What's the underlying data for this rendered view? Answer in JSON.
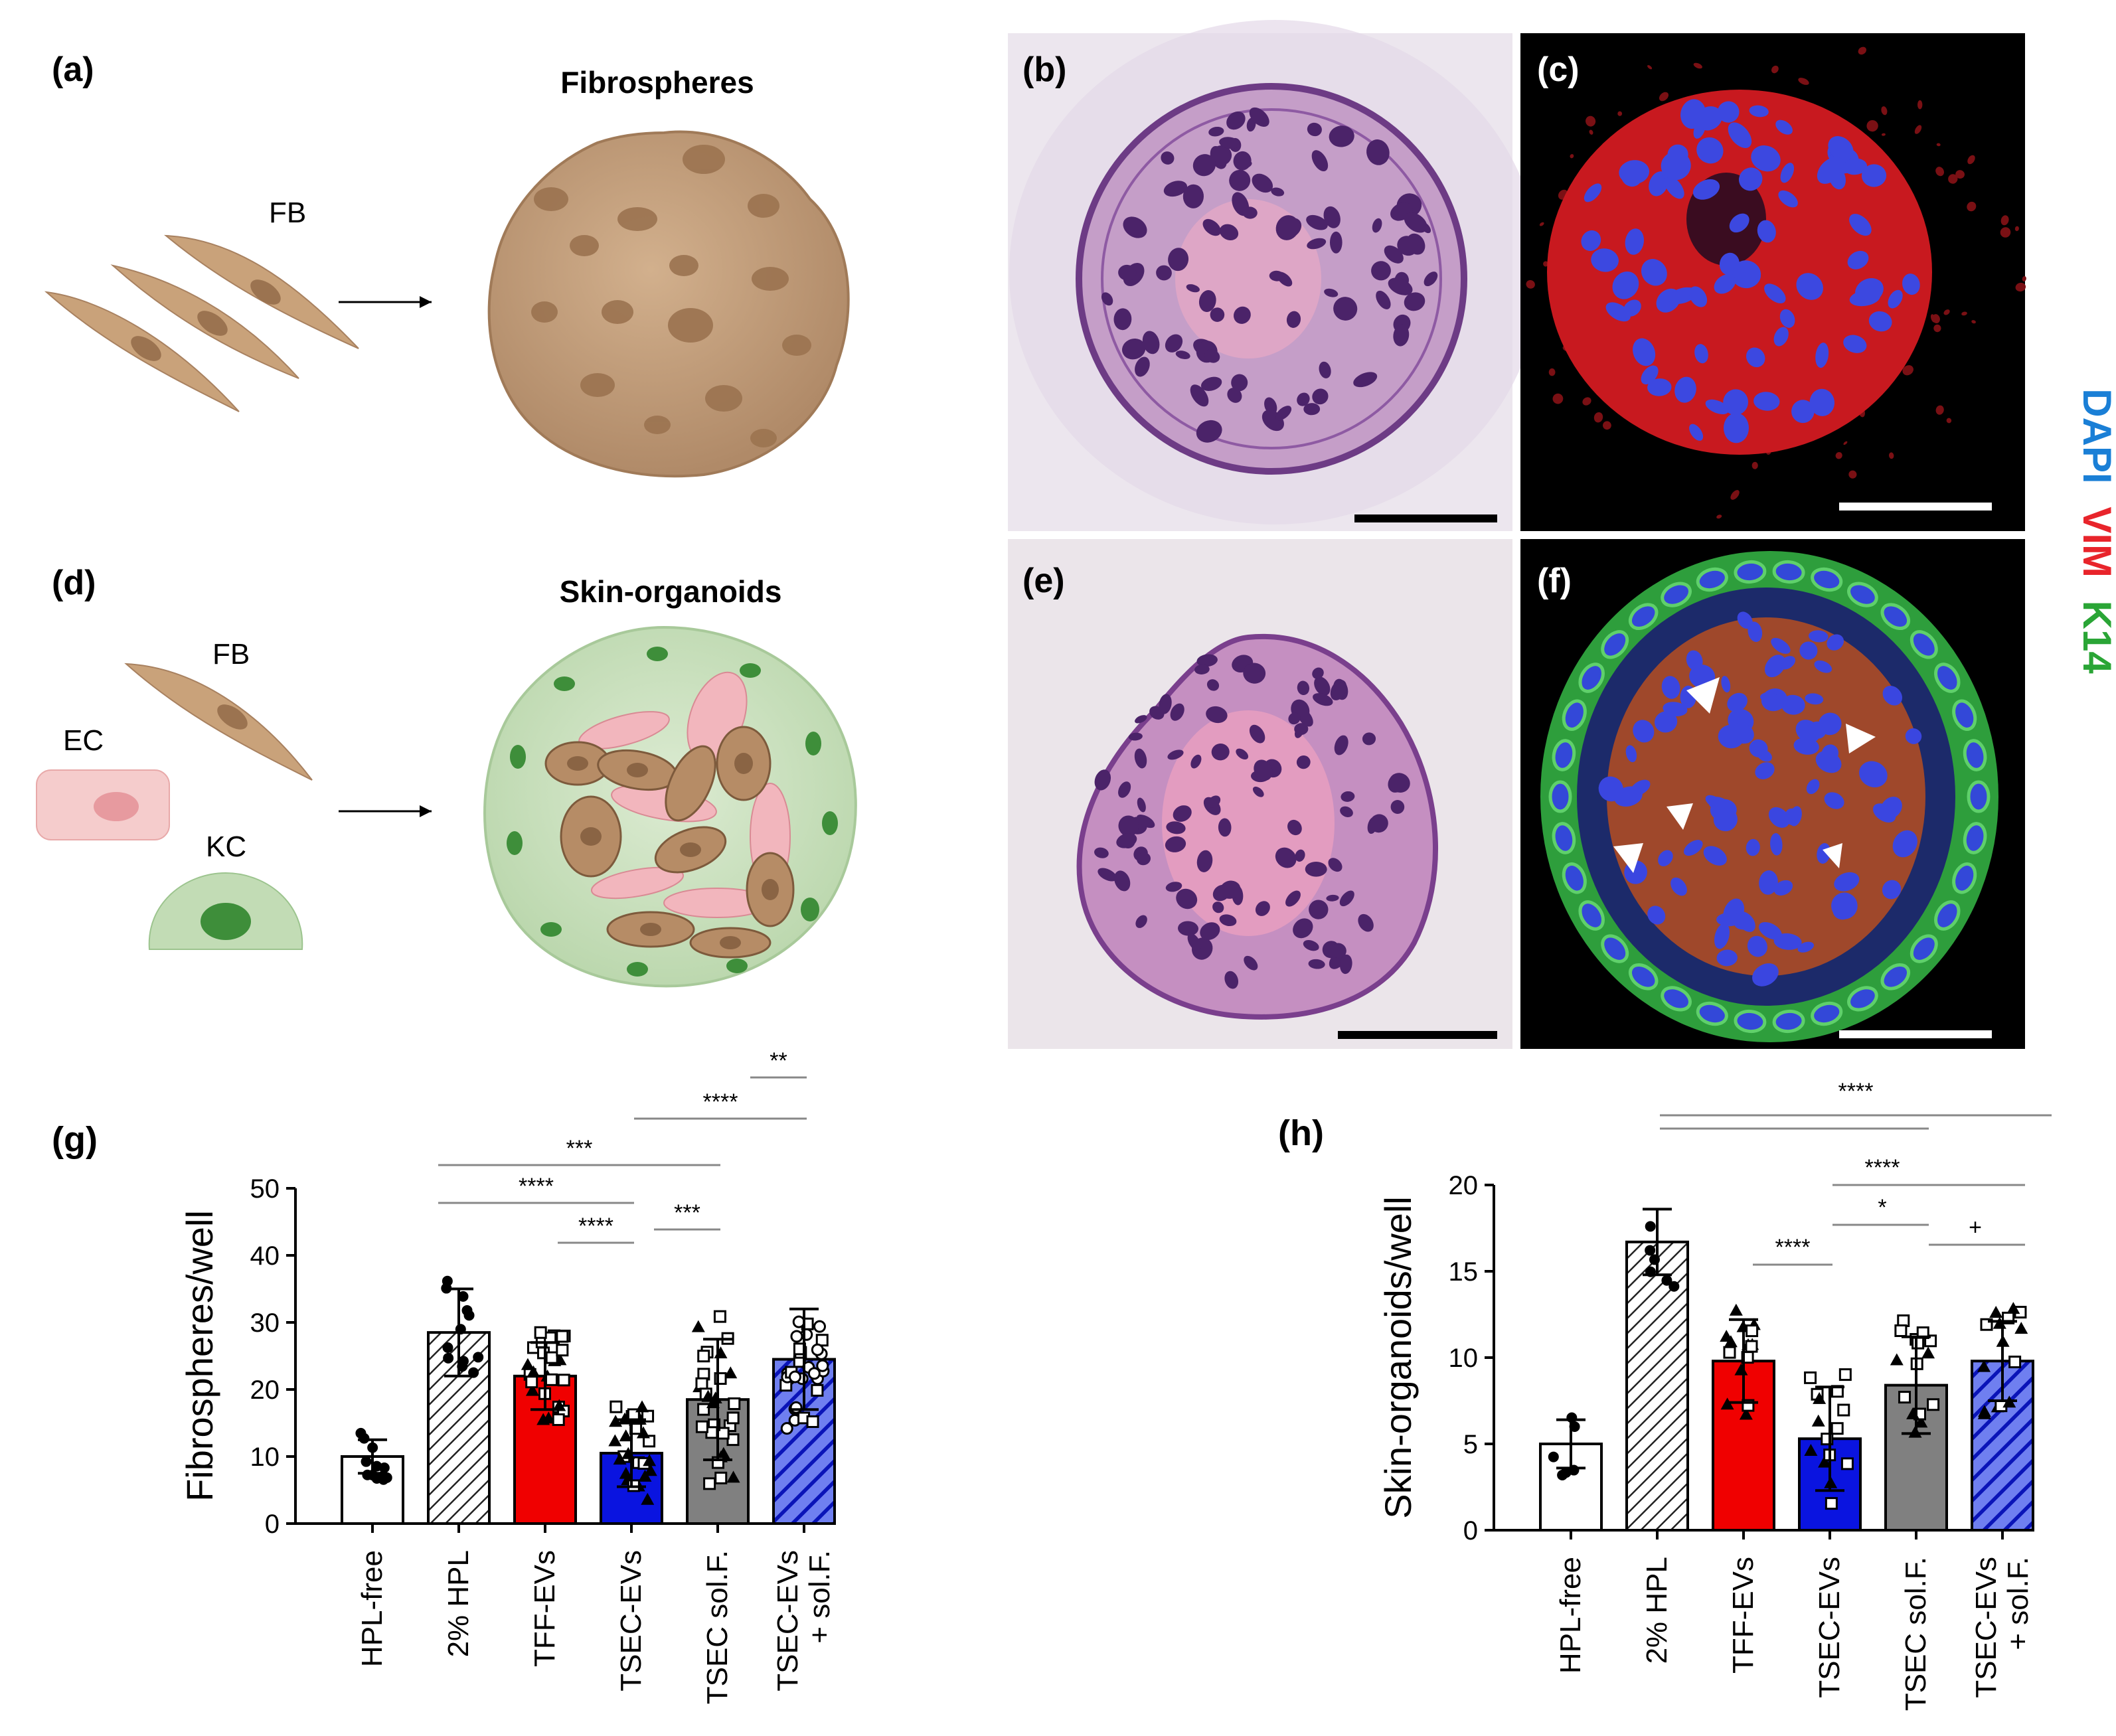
{
  "panels": {
    "a": {
      "letter": "(a)",
      "title": "Fibrospheres",
      "cell_label": "FB"
    },
    "b": {
      "letter": "(b)"
    },
    "c": {
      "letter": "(c)"
    },
    "d": {
      "letter": "(d)",
      "title": "Skin-organoids",
      "cell_labels": [
        "FB",
        "EC",
        "KC"
      ]
    },
    "e": {
      "letter": "(e)"
    },
    "f": {
      "letter": "(f)"
    },
    "g": {
      "letter": "(g)"
    },
    "h": {
      "letter": "(h)"
    }
  },
  "stain_legend": [
    {
      "text": "DAPI",
      "color": "#1a7fd6"
    },
    {
      "text": "VIM",
      "color": "#e8242b"
    },
    {
      "text": "K14",
      "color": "#2aa536"
    }
  ],
  "colors": {
    "fb_cell": "#c9a27a",
    "fb_nucleus": "#9b7350",
    "sphere": "#c4a07e",
    "sphere_dark": "#a88160",
    "ec_cell": "#f2c4c4",
    "ec_nucleus": "#e79a9f",
    "kc_cell": "#c2dcb5",
    "kc_nucleus": "#3e8e3a",
    "he_bg": "#ebe3ec",
    "he_tissue": "#b57fb5",
    "he_nucleus": "#4b2369",
    "if_bg": "#000000",
    "if_vim": "#c8191f",
    "if_dapi": "#3040d8",
    "if_k14": "#33b34a"
  },
  "chart_data": [
    {
      "type": "bar",
      "panel": "g",
      "ylabel": "Fibrospheres/well",
      "ylim": [
        0,
        50
      ],
      "yticks": [
        0,
        10,
        20,
        30,
        40,
        50
      ],
      "categories": [
        "HPL-free",
        "2% HPL",
        "TFF-EVs",
        "TSEC-EVs",
        "TSEC sol.F.",
        "TSEC-EVs\n+ sol.F."
      ],
      "values": [
        10,
        28.5,
        22,
        10.5,
        18.5,
        24.5
      ],
      "errors": [
        2.5,
        6.5,
        5,
        5,
        9,
        7.5
      ],
      "fills": [
        "white",
        "hatch",
        "#f00000",
        "#0a14e0",
        "#808080",
        "bluehatch"
      ],
      "points_per_group": [
        12,
        12,
        30,
        30,
        30,
        30
      ],
      "markers": [
        "dot",
        "dot",
        "square",
        "triangle",
        "square",
        "circle"
      ],
      "significance": [
        {
          "from": 3,
          "to": 5,
          "label": "**"
        },
        {
          "from": 3,
          "to": 5,
          "label": "****"
        },
        {
          "from": 1,
          "to": 4,
          "label": "***"
        },
        {
          "from": 1,
          "to": 3,
          "label": "****"
        },
        {
          "from": 2,
          "to": 3,
          "label": "****"
        },
        {
          "from": 3,
          "to": 4,
          "label": "***"
        }
      ]
    },
    {
      "type": "bar",
      "panel": "h",
      "ylabel": "Skin-organoids/well",
      "ylim": [
        0,
        20
      ],
      "yticks": [
        0,
        5,
        10,
        15,
        20
      ],
      "categories": [
        "HPL-free",
        "2% HPL",
        "TFF-EVs",
        "TSEC-EVs",
        "TSEC sol.F.",
        "TSEC-EVs\n+ sol.F."
      ],
      "values": [
        5,
        16.7,
        9.8,
        5.3,
        8.4,
        9.8
      ],
      "errors": [
        1.4,
        1.9,
        2.4,
        3,
        2.8,
        2.3
      ],
      "fills": [
        "white",
        "hatch",
        "#f00000",
        "#0a14e0",
        "#808080",
        "bluehatch"
      ],
      "points_per_group": [
        6,
        6,
        15,
        15,
        15,
        15
      ],
      "markers": [
        "dot",
        "dot",
        "triangle",
        "square",
        "square",
        "triangle"
      ],
      "significance": [
        {
          "from": 1,
          "to": 4,
          "label": ""
        },
        {
          "from": 1,
          "to": 5,
          "label": "****"
        },
        {
          "from": 3,
          "to": 5,
          "label": "****"
        },
        {
          "from": 3,
          "to": 4,
          "label": "*"
        },
        {
          "from": 2,
          "to": 3,
          "label": "****"
        },
        {
          "from": 4,
          "to": 5,
          "label": "+"
        }
      ]
    }
  ]
}
